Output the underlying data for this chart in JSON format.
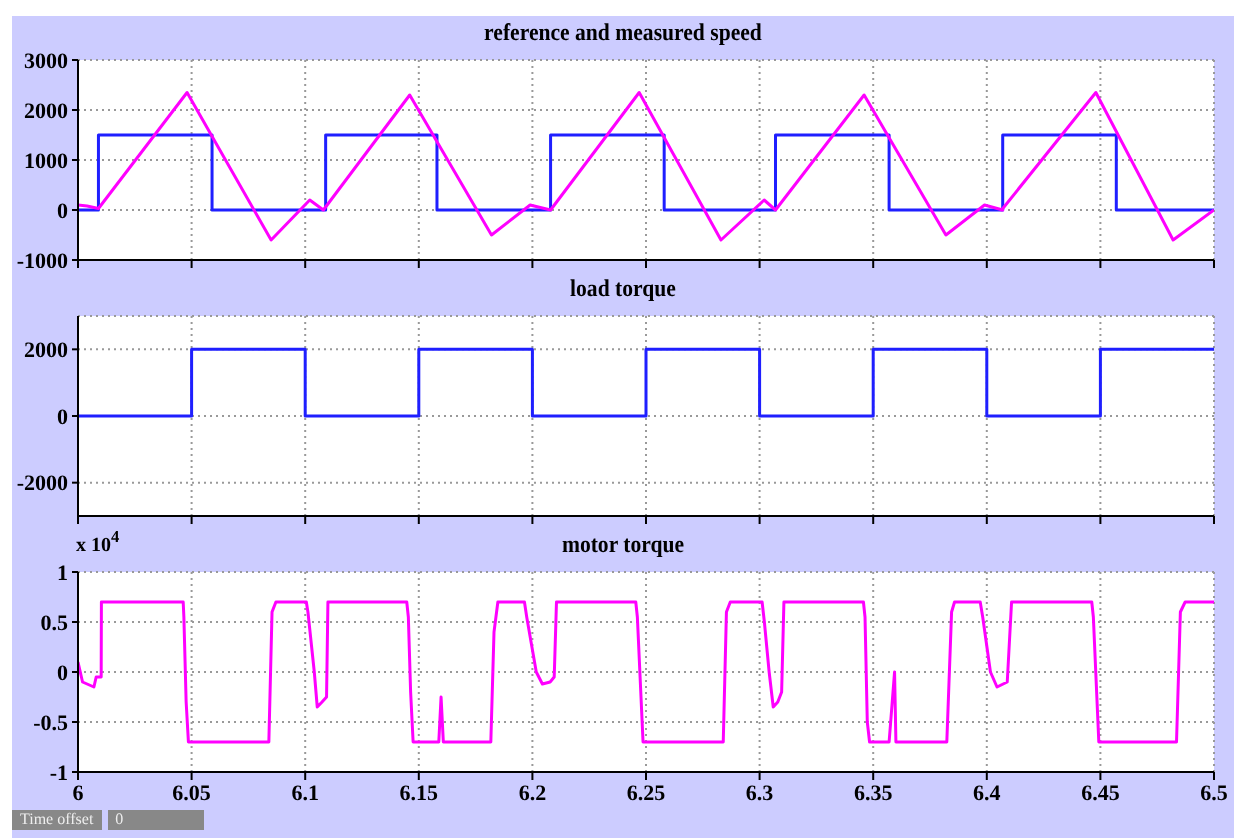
{
  "chart_data": [
    {
      "type": "line",
      "title": "reference and measured speed",
      "xlim": [
        6,
        6.5
      ],
      "xticks": [
        6,
        6.05,
        6.1,
        6.15,
        6.2,
        6.25,
        6.3,
        6.35,
        6.4,
        6.45,
        6.5
      ],
      "ylim": [
        -1000,
        3000
      ],
      "yticks": [
        -1000,
        0,
        1000,
        2000,
        3000
      ],
      "grid": true,
      "legend": false,
      "tick_labels": "y",
      "series": [
        {
          "type": "step",
          "color": "#1f1fff",
          "x": [
            6,
            6.009,
            6.059,
            6.109,
            6.158,
            6.208,
            6.258,
            6.307,
            6.357,
            6.407,
            6.457,
            6.5
          ],
          "values": [
            0,
            1500,
            0,
            1500,
            0,
            1500,
            0,
            1500,
            0,
            1500,
            0,
            0
          ]
        },
        {
          "color": "#ff00ff",
          "x": [
            6,
            6.004,
            6.009,
            6.048,
            6.085,
            6.102,
            6.108,
            6.146,
            6.182,
            6.199,
            6.208,
            6.247,
            6.283,
            6.302,
            6.307,
            6.346,
            6.382,
            6.399,
            6.407,
            6.4065,
            6.448,
            6.482,
            6.5
          ],
          "values": [
            100,
            80,
            30,
            2350,
            -600,
            200,
            0,
            2300,
            -500,
            100,
            0,
            2350,
            -600,
            200,
            0,
            2300,
            -500,
            100,
            0,
            0,
            2350,
            -600,
            0
          ]
        }
      ]
    },
    {
      "type": "step",
      "title": "load torque",
      "xlim": [
        6,
        6.5
      ],
      "xticks": [
        6,
        6.05,
        6.1,
        6.15,
        6.2,
        6.25,
        6.3,
        6.35,
        6.4,
        6.45,
        6.5
      ],
      "ylim": [
        -3000,
        3000
      ],
      "yticks": [
        -2000,
        0,
        2000
      ],
      "grid": true,
      "legend": false,
      "tick_labels": "y",
      "series": [
        {
          "color": "#1f1fff",
          "x": [
            6,
            6.05,
            6.1,
            6.15,
            6.2,
            6.25,
            6.3,
            6.35,
            6.4,
            6.45,
            6.5
          ],
          "values": [
            0,
            2000,
            0,
            2000,
            0,
            2000,
            0,
            2000,
            0,
            2000,
            2000
          ]
        }
      ]
    },
    {
      "type": "line",
      "title": "motor torque",
      "annotations": [
        "x 10$^{4}$",
        "Time offset",
        "0"
      ],
      "xlim": [
        6,
        6.5
      ],
      "xticks": [
        6,
        6.05,
        6.1,
        6.15,
        6.2,
        6.25,
        6.3,
        6.35,
        6.4,
        6.45,
        6.5
      ],
      "ylim": [
        -1,
        1
      ],
      "yticks": [
        -1,
        -0.5,
        0,
        0.5,
        1
      ],
      "grid": true,
      "legend": false,
      "series": [
        {
          "color": "#ff00ff",
          "x": [
            6,
            6.002,
            6.007,
            6.008,
            6.0102,
            6.0103,
            6.0463,
            6.0466,
            6.0476,
            6.0486,
            6.084,
            6.0854,
            6.0871,
            6.1005,
            6.1012,
            6.104,
            6.1053,
            6.1074,
            6.1094,
            6.11,
            6.1447,
            6.1454,
            6.1464,
            6.1475,
            6.1588,
            6.1598,
            6.1608,
            6.1817,
            6.1831,
            6.1848,
            6.1965,
            6.1975,
            6.2017,
            6.2044,
            6.2078,
            6.2096,
            6.2106,
            6.2455,
            6.2462,
            6.2487,
            6.284,
            6.2854,
            6.2871,
            6.3011,
            6.3021,
            6.3042,
            6.306,
            6.308,
            6.3097,
            6.3107,
            6.3457,
            6.3464,
            6.3474,
            6.3484,
            6.357,
            6.3594,
            6.36,
            6.3824,
            6.3845,
            6.3858,
            6.3971,
            6.3982,
            6.4016,
            6.4045,
            6.409,
            6.4109,
            6.4462,
            6.4469,
            6.4493,
            6.4835,
            6.4852,
            6.4873,
            6.5
          ],
          "values": [
            0.1,
            -0.1,
            -0.15,
            -0.05,
            -0.05,
            0.7,
            0.7,
            0.55,
            -0.3,
            -0.7,
            -0.7,
            0.6,
            0.7,
            0.7,
            0.6,
            0,
            -0.35,
            -0.3,
            -0.25,
            0.7,
            0.7,
            0.55,
            -0.2,
            -0.7,
            -0.7,
            -0.25,
            -0.7,
            -0.7,
            0.4,
            0.7,
            0.7,
            0.55,
            0,
            -0.12,
            -0.1,
            -0.05,
            0.7,
            0.7,
            0.55,
            -0.7,
            -0.7,
            0.6,
            0.7,
            0.7,
            0.5,
            0,
            -0.35,
            -0.3,
            -0.2,
            0.7,
            0.7,
            0.55,
            -0.5,
            -0.7,
            -0.7,
            0,
            -0.7,
            -0.7,
            0.6,
            0.7,
            0.7,
            0.55,
            0,
            -0.15,
            -0.1,
            0.7,
            0.7,
            0.55,
            -0.7,
            -0.7,
            0.6,
            0.7,
            0.7
          ]
        }
      ]
    }
  ]
}
